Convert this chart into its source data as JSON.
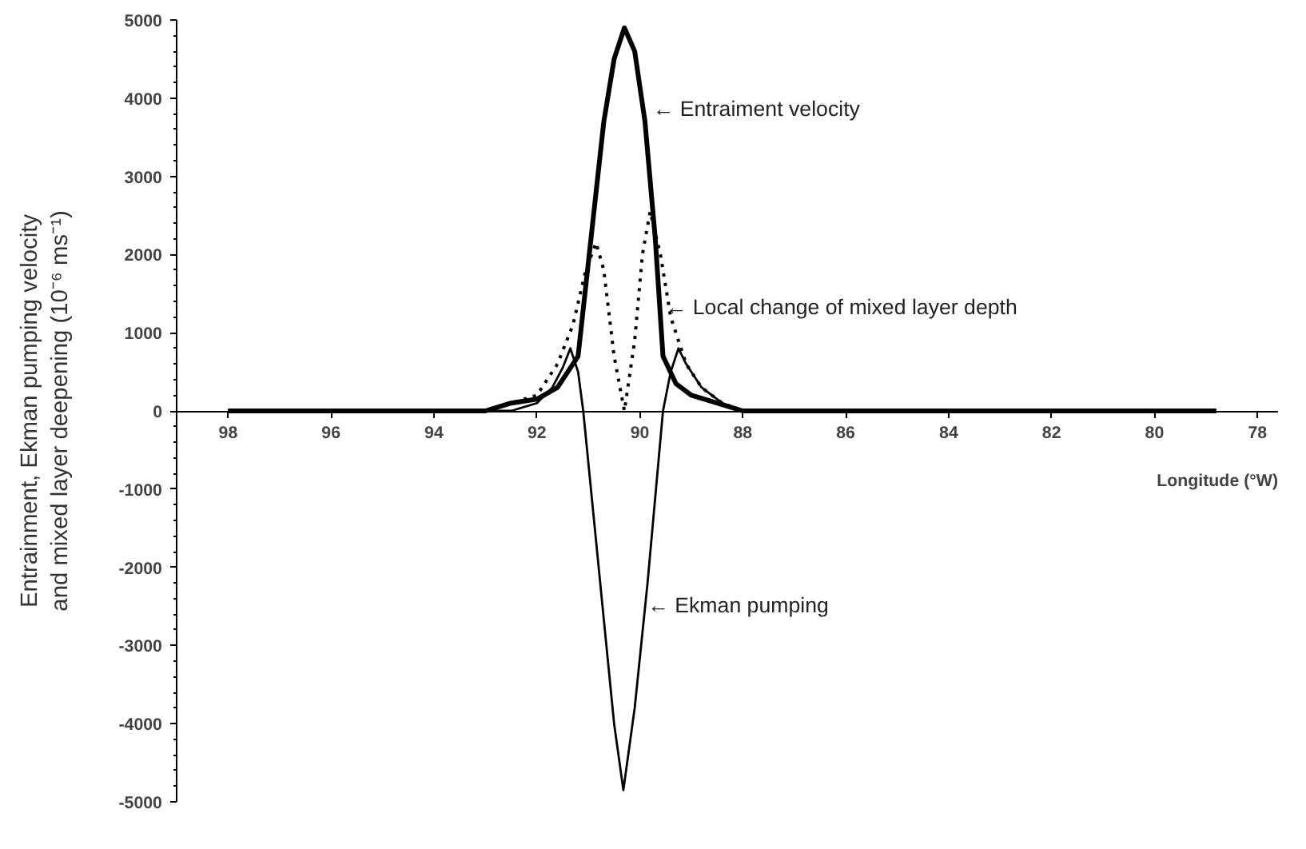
{
  "chart_data": {
    "type": "line",
    "xlabel": "Longitude (°W)",
    "ylabel": "Entrainment, Ekman pumping velocity\nand mixed layer deepening (10⁻⁶ ms⁻¹)",
    "xlim": [
      99,
      77.6
    ],
    "xticks": [
      98,
      96,
      94,
      92,
      90,
      88,
      86,
      84,
      82,
      80,
      78
    ],
    "ylim": [
      -5000,
      5000
    ],
    "yticks": [
      -5000,
      -4000,
      -3000,
      -2000,
      -1000,
      0,
      1000,
      2000,
      3000,
      4000,
      5000
    ],
    "grid": false,
    "marker": "none",
    "series": [
      {
        "color": "#000000",
        "line_style": "solid",
        "x": [
          98,
          94,
          93,
          92.5,
          92,
          91.6,
          91.2,
          90.95,
          90.7,
          90.5,
          90.3,
          90.1,
          89.9,
          89.7,
          89.55,
          89.3,
          89,
          88.5,
          88,
          87,
          84,
          78.8
        ],
        "values": [
          0,
          0,
          0,
          100,
          150,
          300,
          700,
          2200,
          3700,
          4500,
          4900,
          4600,
          3700,
          2200,
          700,
          350,
          200,
          100,
          0,
          0,
          0,
          0
        ]
      },
      {
        "color": "#000000",
        "line_style": "solid",
        "x": [
          98,
          93,
          92.5,
          92,
          91.7,
          91.5,
          91.35,
          91.2,
          91.1,
          90.8,
          90.5,
          90.32,
          90.1,
          89.85,
          89.55,
          89.4,
          89.25,
          89.1,
          88.8,
          88.4,
          88,
          87,
          84,
          78.8
        ],
        "values": [
          0,
          0,
          0,
          100,
          300,
          550,
          800,
          500,
          0,
          -2000,
          -4000,
          -4850,
          -3800,
          -2200,
          0,
          500,
          800,
          600,
          300,
          100,
          0,
          0,
          0,
          0
        ]
      },
      {
        "color": "#000000",
        "line_style": "dotted",
        "x": [
          98,
          93,
          92.5,
          92,
          91.6,
          91.3,
          91.05,
          90.85,
          90.7,
          90.5,
          90.3,
          90.1,
          89.95,
          89.8,
          89.6,
          89.4,
          89.1,
          88.8,
          88.4,
          88,
          87,
          84,
          78.8
        ],
        "values": [
          0,
          0,
          100,
          200,
          600,
          1100,
          1800,
          2150,
          1800,
          700,
          0,
          900,
          2000,
          2550,
          2000,
          1200,
          600,
          300,
          100,
          0,
          0,
          0,
          0
        ]
      }
    ],
    "annotations": [
      {
        "text": "← Entraiment velocity",
        "x": 89.75,
        "y": 3870
      },
      {
        "text": "← Local change of mixed layer depth",
        "x": 89.5,
        "y": 1330
      },
      {
        "text": "← Ekman pumping",
        "x": 89.85,
        "y": -2480
      }
    ]
  }
}
